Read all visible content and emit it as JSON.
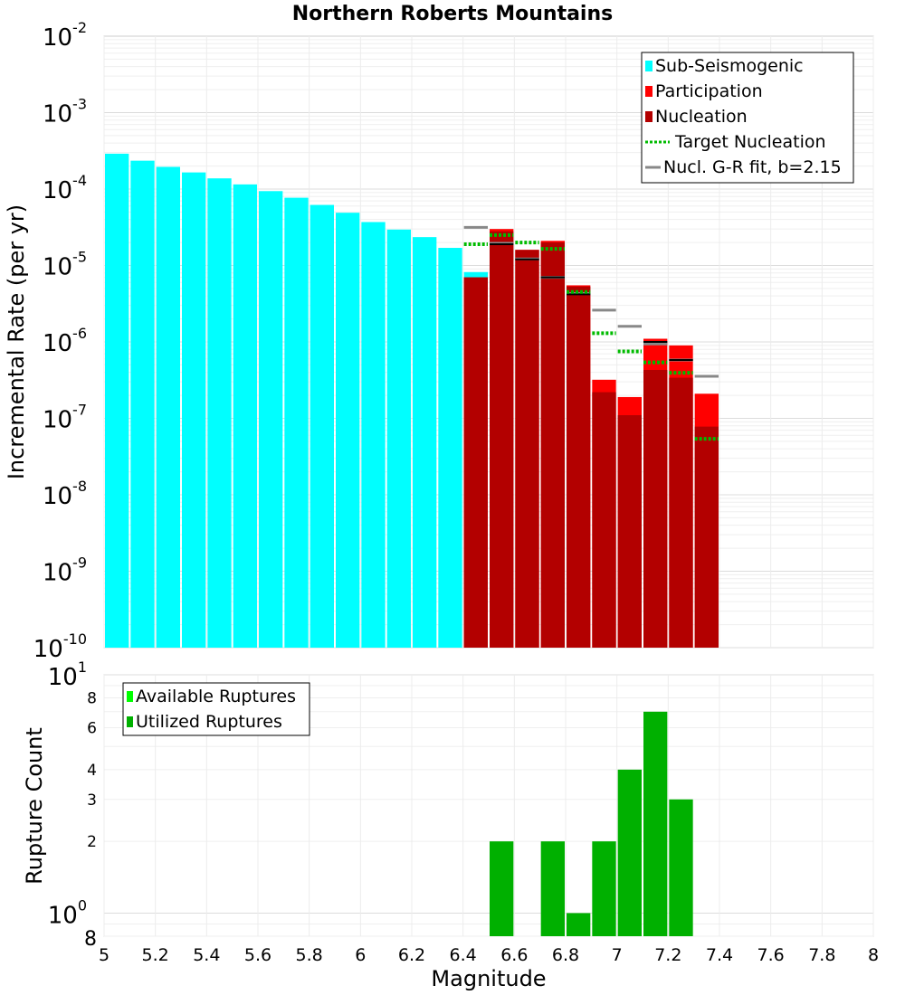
{
  "chart_data": [
    {
      "type": "bar",
      "title": "Northern Roberts Mountains",
      "ylabel": "Incremental Rate (per yr)",
      "xlabel": "",
      "xlim": [
        5,
        8
      ],
      "yscale": "log",
      "ylim": [
        1e-10,
        0.01
      ],
      "y_ticks": [
        {
          "base": "10",
          "exp": "-10"
        },
        {
          "base": "10",
          "exp": "-9"
        },
        {
          "base": "10",
          "exp": "-8"
        },
        {
          "base": "10",
          "exp": "-7"
        },
        {
          "base": "10",
          "exp": "-6"
        },
        {
          "base": "10",
          "exp": "-5"
        },
        {
          "base": "10",
          "exp": "-4"
        },
        {
          "base": "10",
          "exp": "-3"
        },
        {
          "base": "10",
          "exp": "-2"
        }
      ],
      "bin_width": 0.1,
      "legend_position": "top-right",
      "legend": [
        {
          "label": "Sub-Seismogenic",
          "color": "#00ffff",
          "style": "bar"
        },
        {
          "label": "Participation",
          "color": "#ff0000",
          "style": "bar"
        },
        {
          "label": "Nucleation",
          "color": "#b30000",
          "style": "bar"
        },
        {
          "label": "Target Nucleation",
          "color": "#00bb00",
          "style": "dotted"
        },
        {
          "label": "Nucl. G-R fit, b=2.15",
          "color": "#888888",
          "style": "line"
        }
      ],
      "series": [
        {
          "name": "Sub-Seismogenic",
          "color": "#00ffff",
          "x": [
            5.05,
            5.15,
            5.25,
            5.35,
            5.45,
            5.55,
            5.65,
            5.75,
            5.85,
            5.95,
            6.05,
            6.15,
            6.25,
            6.35,
            6.45
          ],
          "values": [
            0.00029,
            0.000235,
            0.000195,
            0.000165,
            0.000138,
            0.000115,
            9.4e-05,
            7.7e-05,
            6.2e-05,
            4.9e-05,
            3.7e-05,
            2.95e-05,
            2.35e-05,
            1.7e-05,
            8.2e-06
          ]
        },
        {
          "name": "Participation",
          "color": "#ff0000",
          "x": [
            6.45,
            6.55,
            6.65,
            6.75,
            6.85,
            6.95,
            7.05,
            7.15,
            7.25,
            7.35
          ],
          "values": [
            7e-06,
            3e-05,
            1.6e-05,
            2.1e-05,
            5.5e-06,
            3.2e-07,
            1.9e-07,
            1.1e-06,
            9e-07,
            2.1e-07
          ]
        },
        {
          "name": "Nucleation",
          "color": "#b30000",
          "x": [
            6.45,
            6.55,
            6.65,
            6.75,
            6.85,
            6.95,
            7.05,
            7.15,
            7.25,
            7.35
          ],
          "values": [
            7e-06,
            2.8e-05,
            1.6e-05,
            2e-05,
            5.3e-06,
            2.2e-07,
            1.1e-07,
            4.3e-07,
            3.4e-07,
            7.8e-08
          ]
        },
        {
          "name": "Target Nucleation",
          "color": "#00bb00",
          "x": [
            6.45,
            6.55,
            6.65,
            6.75,
            6.85,
            6.95,
            7.05,
            7.15,
            7.25,
            7.35
          ],
          "values": [
            1.9e-05,
            2.5e-05,
            2e-05,
            1.65e-05,
            4.5e-06,
            1.3e-06,
            7.5e-07,
            5.4e-07,
            3.95e-07,
            5.4e-08
          ]
        },
        {
          "name": "Nucl. G-R fit, b=2.15",
          "color": "#888888",
          "x": [
            6.45,
            6.55,
            6.65,
            6.75,
            6.85,
            6.95,
            7.05,
            7.15,
            7.25,
            7.35
          ],
          "values": [
            3.15e-05,
            1.95e-05,
            1.22e-05,
            7e-06,
            4.3e-06,
            2.6e-06,
            1.6e-06,
            9.4e-07,
            5.8e-07,
            3.55e-07
          ]
        },
        {
          "name": "Black tick marks",
          "color": "#000000",
          "x": [
            6.55,
            6.65,
            6.75,
            6.85,
            7.15,
            7.25
          ],
          "values": [
            1.9e-05,
            1.2e-05,
            7e-06,
            4.2e-06,
            1e-06,
            5.8e-07
          ]
        }
      ]
    },
    {
      "type": "bar",
      "title": "",
      "ylabel": "Rupture Count",
      "xlabel": "Magnitude",
      "xlim": [
        5,
        8
      ],
      "x_ticks": [
        "5",
        "5.2",
        "5.4",
        "5.6",
        "5.8",
        "6",
        "6.2",
        "6.4",
        "6.6",
        "6.8",
        "7",
        "7.2",
        "7.4",
        "7.6",
        "7.8",
        "8"
      ],
      "yscale": "log",
      "ylim": [
        0.8,
        10
      ],
      "y_ticks_minor": [
        {
          "label": "2",
          "value": 2
        },
        {
          "label": "3",
          "value": 3
        },
        {
          "label": "4",
          "value": 4
        },
        {
          "label": "6",
          "value": 6
        },
        {
          "label": "8",
          "value": 8
        }
      ],
      "y_tick_bottom": "8",
      "y_tick_decades": [
        {
          "base": "10",
          "exp": "0",
          "value": 1
        },
        {
          "base": "10",
          "exp": "1",
          "value": 10
        }
      ],
      "bin_width": 0.1,
      "legend_position": "top-left",
      "legend": [
        {
          "label": "Available Ruptures",
          "color": "#00ff00",
          "style": "bar"
        },
        {
          "label": "Utilized Ruptures",
          "color": "#00b000",
          "style": "bar"
        }
      ],
      "series": [
        {
          "name": "Utilized Ruptures",
          "color": "#00b000",
          "x": [
            6.55,
            6.75,
            6.85,
            6.95,
            7.05,
            7.15,
            7.25
          ],
          "values": [
            2,
            2,
            1,
            2,
            4,
            7,
            3
          ]
        }
      ]
    }
  ]
}
